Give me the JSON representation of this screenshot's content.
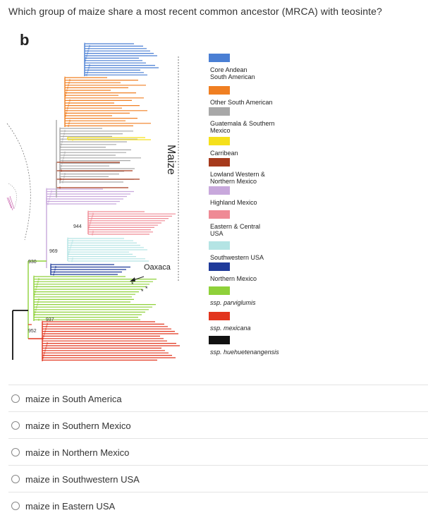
{
  "question": "Which group of maize share a most recent common ancestor (MRCA) with teosinte?",
  "figure": {
    "panel_letter": "b",
    "maize_label": "Maize",
    "oaxaca_label": "Oaxaca",
    "node_labels": [
      "944",
      "969",
      "930",
      "937",
      "952"
    ],
    "legend": [
      {
        "label": "Core Andean\nSouth American",
        "color": "#4a7fd4",
        "italic": false
      },
      {
        "label": "Other South American",
        "color": "#f07f22",
        "italic": false
      },
      {
        "label": "Guatemala & Southern\nMexico",
        "color": "#a8a8a8",
        "italic": false
      },
      {
        "label": "Carribean",
        "color": "#f5e01b",
        "italic": false
      },
      {
        "label": "Lowland Western &\nNorthern Mexico",
        "color": "#a63a1c",
        "italic": false
      },
      {
        "label": "Highland Mexico",
        "color": "#c8a8dc",
        "italic": false
      },
      {
        "label": "Eastern & Central\nUSA",
        "color": "#ef8a95",
        "italic": false
      },
      {
        "label": "Southwestern USA",
        "color": "#b4e4e4",
        "italic": false
      },
      {
        "label": "Northern Mexico",
        "color": "#1f3a9a",
        "italic": false
      },
      {
        "label": "ssp. parviglumis",
        "color": "#8fd13a",
        "italic": true
      },
      {
        "label": "ssp. mexicana",
        "color": "#e2351e",
        "italic": true
      },
      {
        "label": "ssp. huehuetenangensis",
        "color": "#111111",
        "italic": true
      }
    ]
  },
  "options": [
    {
      "label": "maize in South America"
    },
    {
      "label": "maize in Southern Mexico"
    },
    {
      "label": "maize in Northern Mexico"
    },
    {
      "label": "maize in Southwestern USA"
    },
    {
      "label": "maize in Eastern USA"
    }
  ]
}
